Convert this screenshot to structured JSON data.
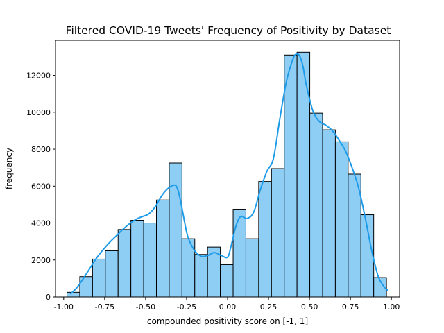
{
  "chart_data": {
    "type": "bar",
    "title": "Filtered COVID-19 Tweets' Frequency of Positivity by Dataset",
    "xlabel": "compounded positivity score on [-1, 1]",
    "ylabel": "frequency",
    "xlim": [
      -1.05,
      1.05
    ],
    "ylim": [
      0,
      13900
    ],
    "xticks": [
      "-1.00",
      "-0.75",
      "-0.50",
      "-0.25",
      "0.00",
      "0.25",
      "0.50",
      "0.75",
      "1.00"
    ],
    "xtick_values": [
      -1.0,
      -0.75,
      -0.5,
      -0.25,
      0.0,
      0.25,
      0.5,
      0.75,
      1.0
    ],
    "yticks": [
      "0",
      "2000",
      "4000",
      "6000",
      "8000",
      "10000",
      "12000"
    ],
    "ytick_values": [
      0,
      2000,
      4000,
      6000,
      8000,
      10000,
      12000
    ],
    "bin_edges": [
      -0.98,
      -0.902,
      -0.824,
      -0.746,
      -0.668,
      -0.59,
      -0.512,
      -0.434,
      -0.356,
      -0.278,
      -0.2,
      -0.122,
      -0.044,
      0.034,
      0.112,
      0.19,
      0.268,
      0.346,
      0.424,
      0.502,
      0.58,
      0.658,
      0.736,
      0.814,
      0.892,
      0.97
    ],
    "values": [
      250,
      1100,
      2050,
      2500,
      3650,
      4150,
      4000,
      5250,
      7250,
      3150,
      2300,
      2700,
      1750,
      4750,
      3150,
      6250,
      6950,
      13100,
      13250,
      9950,
      9050,
      8400,
      6650,
      4450,
      1050
    ],
    "kde": {
      "x": [
        -0.96,
        -0.92,
        -0.88,
        -0.84,
        -0.8,
        -0.76,
        -0.72,
        -0.68,
        -0.64,
        -0.6,
        -0.56,
        -0.52,
        -0.48,
        -0.44,
        -0.4,
        -0.36,
        -0.32,
        -0.3,
        -0.28,
        -0.26,
        -0.24,
        -0.2,
        -0.16,
        -0.12,
        -0.08,
        -0.04,
        0.0,
        0.02,
        0.05,
        0.08,
        0.12,
        0.16,
        0.2,
        0.24,
        0.28,
        0.32,
        0.36,
        0.4,
        0.42,
        0.44,
        0.46,
        0.48,
        0.52,
        0.56,
        0.6,
        0.64,
        0.68,
        0.72,
        0.76,
        0.8,
        0.84,
        0.88,
        0.92,
        0.96,
        0.98
      ],
      "y": [
        150,
        500,
        1000,
        1550,
        2100,
        2550,
        2950,
        3300,
        3650,
        3950,
        4200,
        4350,
        4500,
        4900,
        5500,
        5900,
        6050,
        5700,
        4900,
        3950,
        3200,
        2500,
        2200,
        2250,
        2400,
        2250,
        2150,
        2700,
        3800,
        4350,
        4250,
        4600,
        5800,
        6800,
        7500,
        9700,
        11700,
        12900,
        13150,
        13050,
        12500,
        11500,
        10100,
        9500,
        9300,
        9000,
        8500,
        7900,
        7000,
        5900,
        4300,
        2500,
        1100,
        500,
        350
      ]
    },
    "colors": {
      "bar_fill": "#8ecdf4",
      "bar_edge": "#000000",
      "kde_line": "#1e9be8"
    },
    "grid": false,
    "legend": "none"
  }
}
